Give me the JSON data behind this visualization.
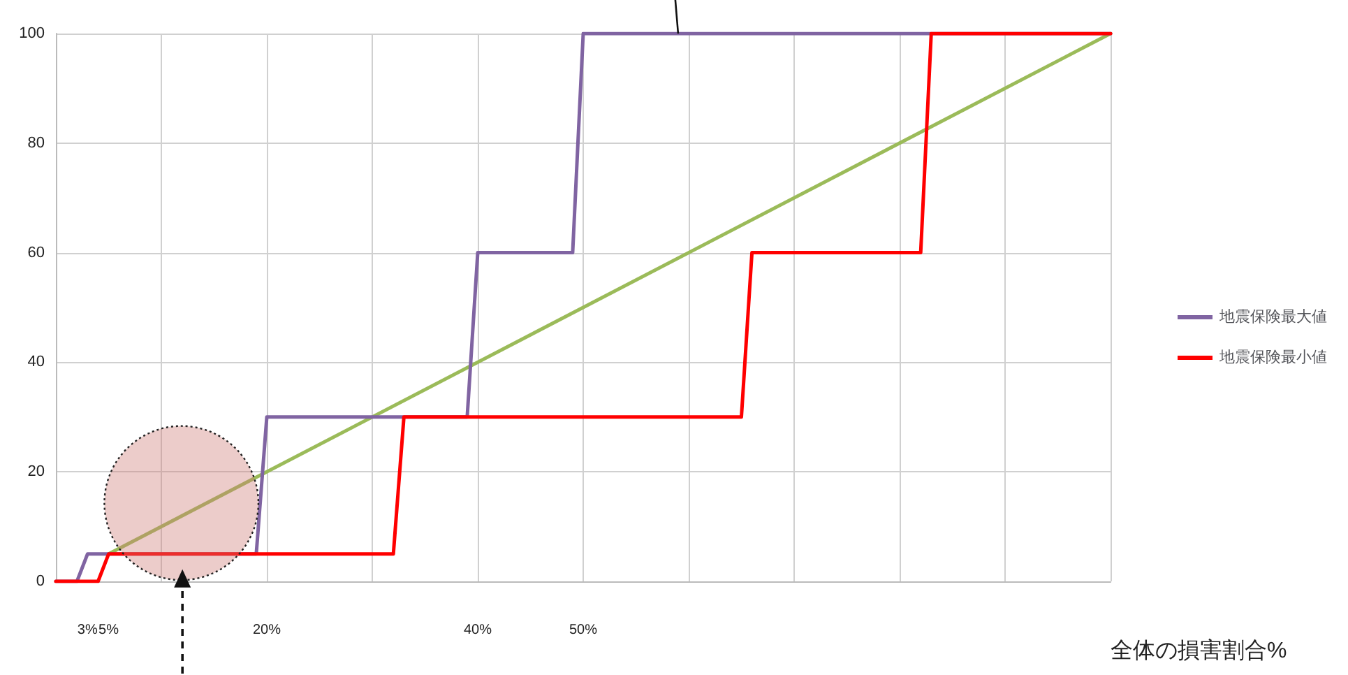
{
  "chart_data": {
    "type": "line",
    "xlabel": "全体の損害割合%",
    "xlim": [
      0,
      100
    ],
    "ylim": [
      0,
      100
    ],
    "xticks": [
      {
        "value": 0,
        "label": null
      },
      {
        "value": 3,
        "label": "3%"
      },
      {
        "value": 5,
        "label": "5%"
      },
      {
        "value": 10,
        "label": null
      },
      {
        "value": 20,
        "label": "20%"
      },
      {
        "value": 30,
        "label": null
      },
      {
        "value": 40,
        "label": "40%"
      },
      {
        "value": 50,
        "label": "50%"
      },
      {
        "value": 60,
        "label": null
      },
      {
        "value": 70,
        "label": null
      },
      {
        "value": 80,
        "label": null
      },
      {
        "value": 90,
        "label": null
      },
      {
        "value": 100,
        "label": null
      }
    ],
    "yticks": [
      0,
      20,
      40,
      60,
      80,
      100
    ],
    "grid": true,
    "legend": "right",
    "marker": "none",
    "line_style": "solid",
    "series": [
      {
        "color": "#9bbb59",
        "x": [
          5,
          100
        ],
        "values": [
          5,
          100
        ]
      },
      {
        "name": "地震保険最大値",
        "color": "#8064a2",
        "x": [
          0,
          2,
          3,
          19,
          20,
          39,
          40,
          49,
          50,
          100
        ],
        "values": [
          0,
          0,
          5,
          5,
          30,
          30,
          60,
          60,
          100,
          100
        ]
      },
      {
        "name": "地震保険最小値",
        "color": "#ff0000",
        "x": [
          0,
          4,
          5,
          32,
          33,
          65,
          66,
          82,
          83,
          100
        ],
        "values": [
          0,
          0,
          5,
          5,
          30,
          30,
          60,
          60,
          100,
          100
        ]
      }
    ]
  }
}
